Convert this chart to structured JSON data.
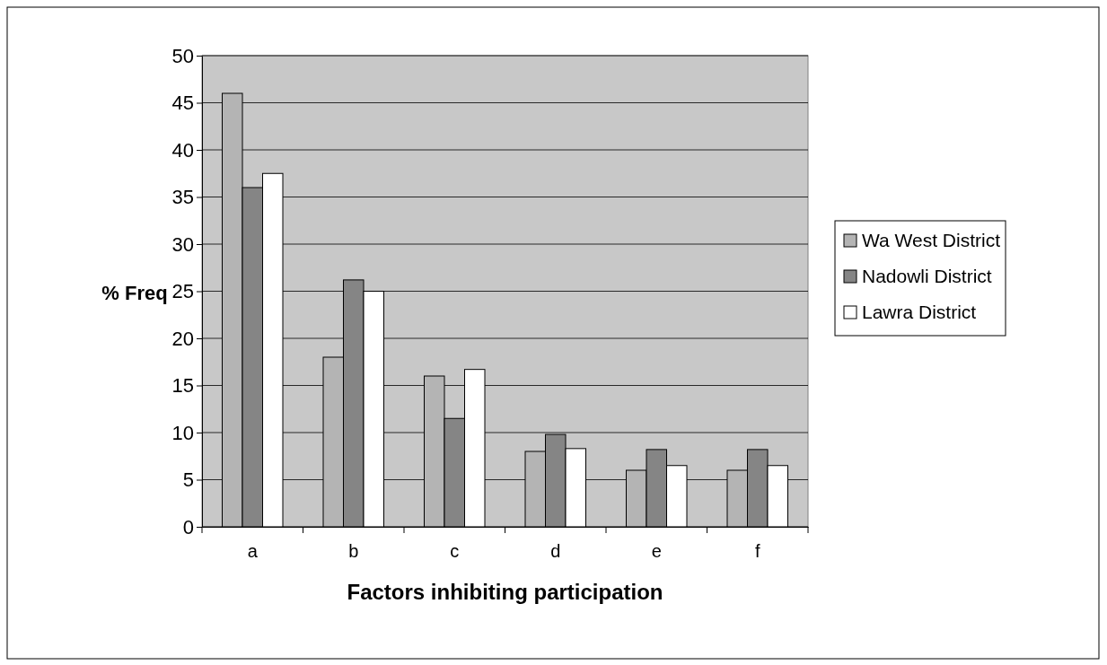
{
  "chart_data": {
    "type": "bar",
    "xlabel": "Factors inhibiting participation",
    "ylabel": "% Freq",
    "categories": [
      "a",
      "b",
      "c",
      "d",
      "e",
      "f"
    ],
    "series": [
      {
        "name": "Wa West District",
        "color": "#b4b4b4",
        "values": [
          46,
          18,
          16,
          8,
          6,
          6
        ]
      },
      {
        "name": "Nadowli District",
        "color": "#858585",
        "values": [
          36,
          26.2,
          11.5,
          9.8,
          8.2,
          8.2
        ]
      },
      {
        "name": "Lawra District",
        "color": "#ffffff",
        "values": [
          37.5,
          25,
          16.7,
          8.3,
          6.5,
          6.5
        ]
      }
    ],
    "ylim": [
      0,
      50
    ],
    "yticks": [
      0,
      5,
      10,
      15,
      20,
      25,
      30,
      35,
      40,
      45,
      50
    ],
    "grid": "y",
    "legend": "right"
  }
}
